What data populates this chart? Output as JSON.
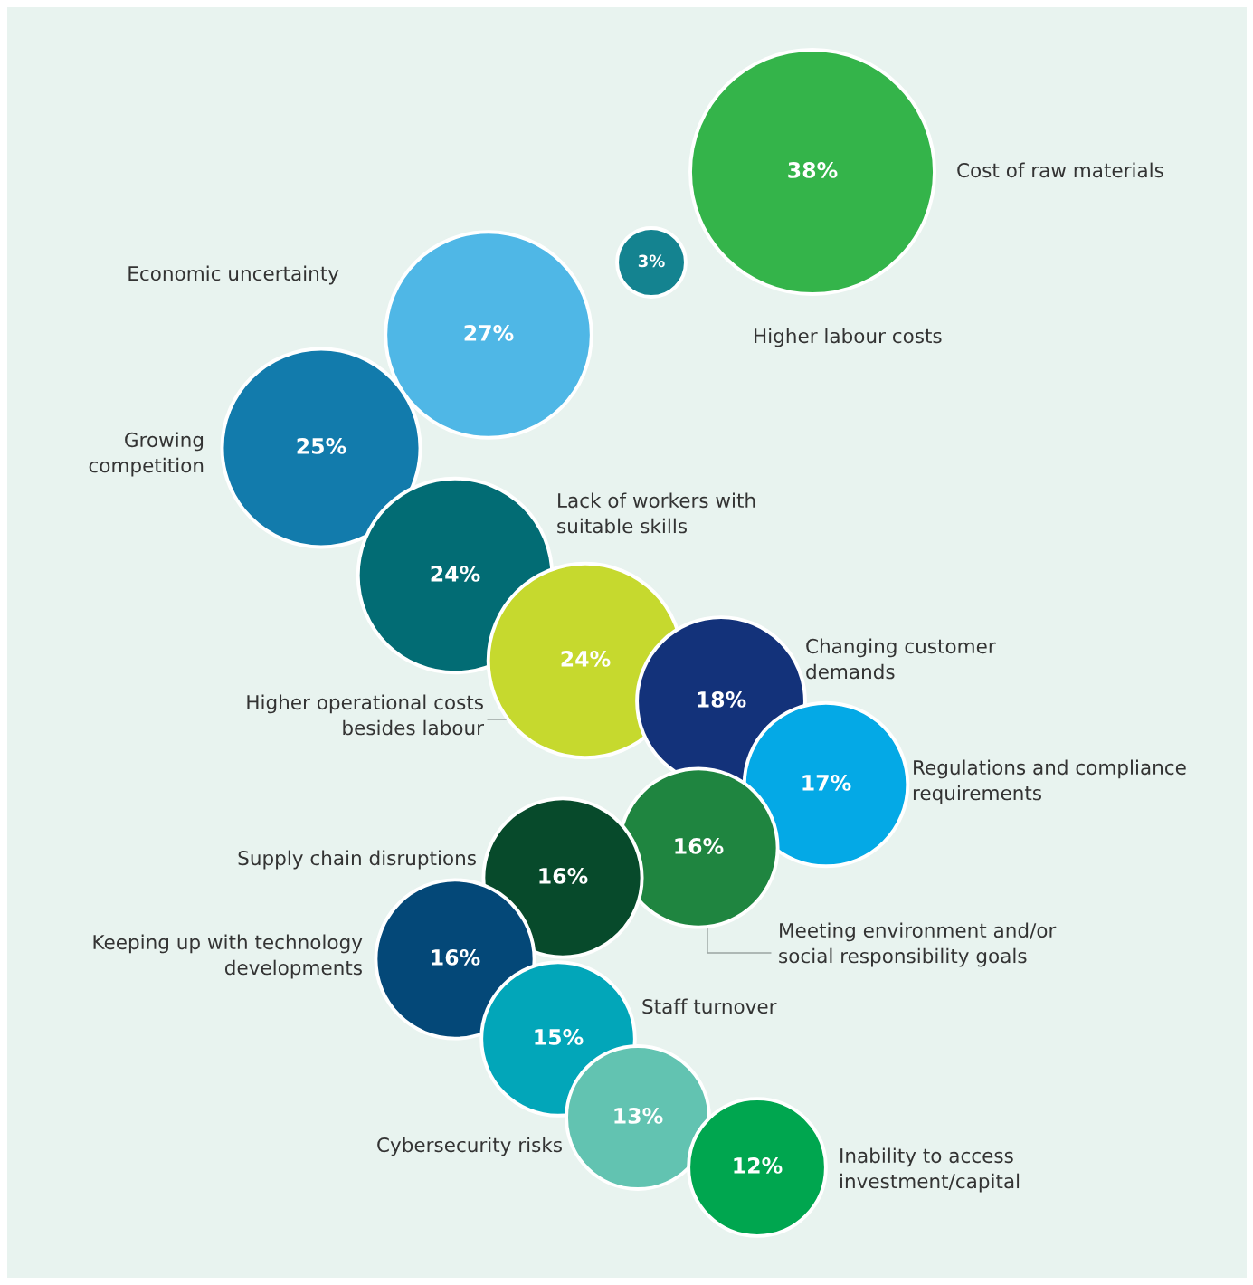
{
  "chart_data": {
    "type": "other",
    "categories": [
      "Cost of raw materials",
      "Higher labour costs",
      "Economic uncertainty",
      "Growing\ncompetition",
      "Lack of workers with\nsuitable skills",
      "Higher operational costs\nbesides labour",
      "Changing customer\ndemands",
      "Regulations and compliance\nrequirements",
      "Meeting environment and/or\nsocial responsibility goals",
      "Supply chain disruptions",
      "Keeping up with technology\ndevelopments",
      "Staff turnover",
      "Cybersecurity risks",
      "Inability to access\ninvestment/capital"
    ],
    "values": [
      38,
      3,
      27,
      25,
      24,
      24,
      18,
      17,
      16,
      16,
      16,
      15,
      13,
      12
    ],
    "value_labels": [
      "38%",
      "3%",
      "27%",
      "25%",
      "24%",
      "24%",
      "18%",
      "17%",
      "16%",
      "16%",
      "16%",
      "15%",
      "13%",
      "12%"
    ],
    "colors": [
      "#34b44a",
      "#148390",
      "#4fb7e6",
      "#127bac",
      "#026c74",
      "#c6d92e",
      "#13327a",
      "#04a9e6",
      "#1f8540",
      "#074a2b",
      "#044878",
      "#02a6b9",
      "#62c3b1",
      "#00a64f"
    ]
  }
}
